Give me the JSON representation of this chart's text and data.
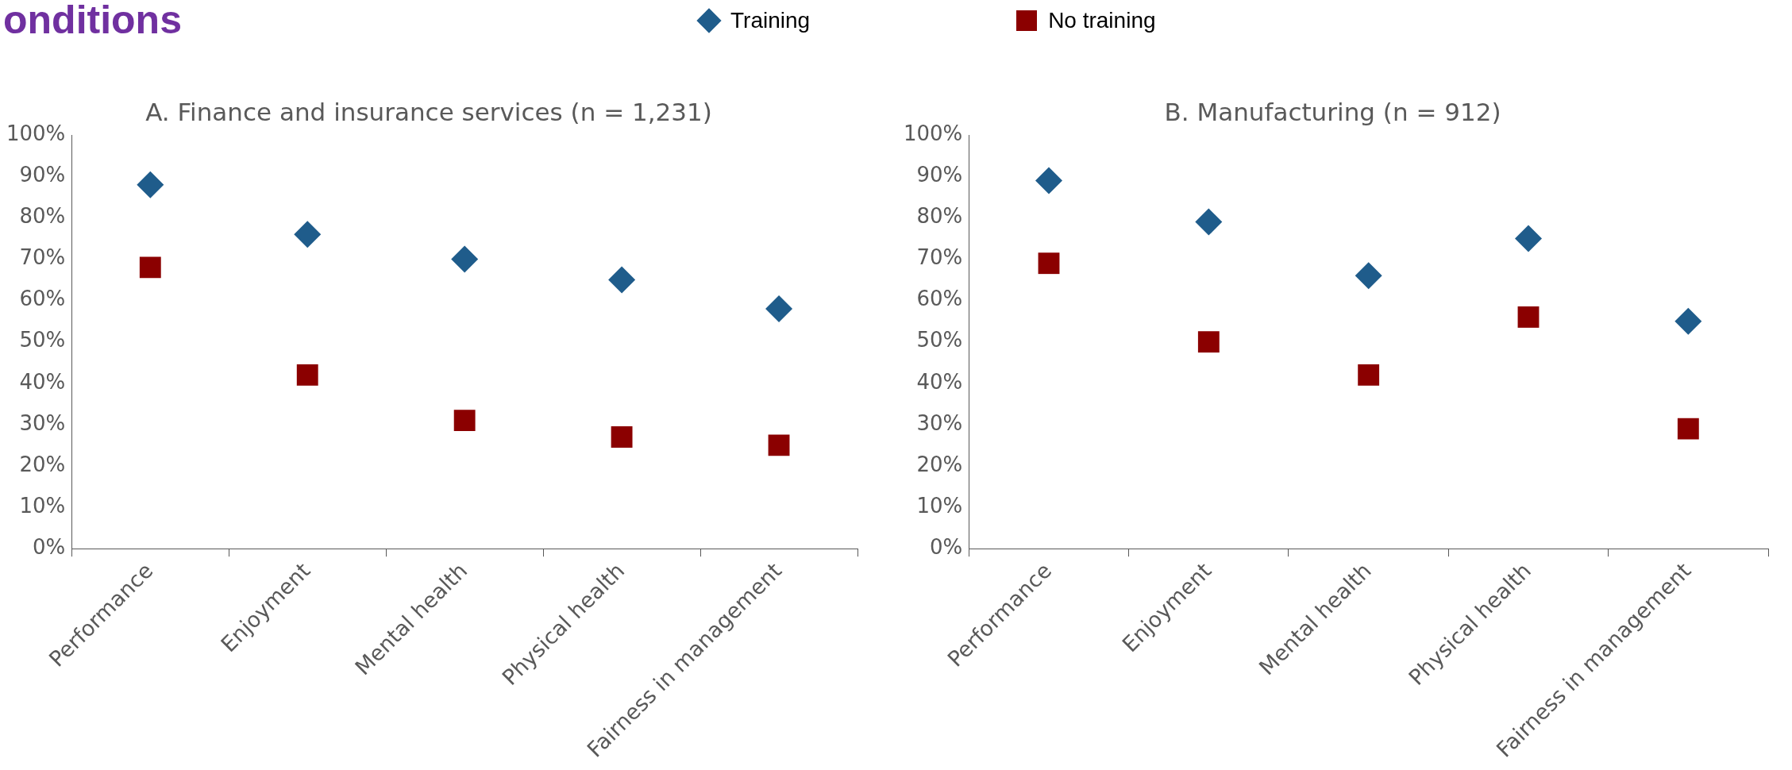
{
  "chart_data": [
    {
      "type": "scatter",
      "title": "A. Finance and insurance services (n = 1,231)",
      "annotations": [
        "onditions"
      ],
      "categories": [
        "Performance",
        "Enjoyment",
        "Mental health",
        "Physical health",
        "Fairness in management"
      ],
      "series": [
        {
          "name": "Training",
          "color": "#1f5c8b",
          "marker": "diamond",
          "values": [
            88,
            76,
            70,
            65,
            58
          ]
        },
        {
          "name": "No training",
          "color": "#8b0000",
          "marker": "square",
          "values": [
            68,
            42,
            31,
            27,
            25
          ]
        }
      ],
      "ylim": [
        0,
        100
      ],
      "yticks": [
        {
          "value": 0,
          "label": "0%"
        },
        {
          "value": 10,
          "label": "10%"
        },
        {
          "value": 20,
          "label": "20%"
        },
        {
          "value": 30,
          "label": "30%"
        },
        {
          "value": 40,
          "label": "40%"
        },
        {
          "value": 50,
          "label": "50%"
        },
        {
          "value": 60,
          "label": "60%"
        },
        {
          "value": 70,
          "label": "70%"
        },
        {
          "value": 80,
          "label": "80%"
        },
        {
          "value": 90,
          "label": "90%"
        },
        {
          "value": 100,
          "label": "100%"
        }
      ],
      "grid": false,
      "legend": "top"
    },
    {
      "type": "scatter",
      "title": "B. Manufacturing (n = 912)",
      "categories": [
        "Performance",
        "Enjoyment",
        "Mental health",
        "Physical health",
        "Fairness in management"
      ],
      "series": [
        {
          "color": "#1f5c8b",
          "marker": "diamond",
          "values": [
            89,
            79,
            66,
            75,
            55
          ]
        },
        {
          "color": "#8b0000",
          "marker": "square",
          "values": [
            69,
            50,
            42,
            56,
            29
          ]
        }
      ],
      "ylim": [
        0,
        100
      ],
      "yticks": [
        {
          "value": 0,
          "label": "0%"
        },
        {
          "value": 10,
          "label": "10%"
        },
        {
          "value": 20,
          "label": "20%"
        },
        {
          "value": 30,
          "label": "30%"
        },
        {
          "value": 40,
          "label": "40%"
        },
        {
          "value": 50,
          "label": "50%"
        },
        {
          "value": 60,
          "label": "60%"
        },
        {
          "value": 70,
          "label": "70%"
        },
        {
          "value": 80,
          "label": "80%"
        },
        {
          "value": 90,
          "label": "90%"
        },
        {
          "value": 100,
          "label": "100%"
        }
      ],
      "grid": false
    }
  ]
}
